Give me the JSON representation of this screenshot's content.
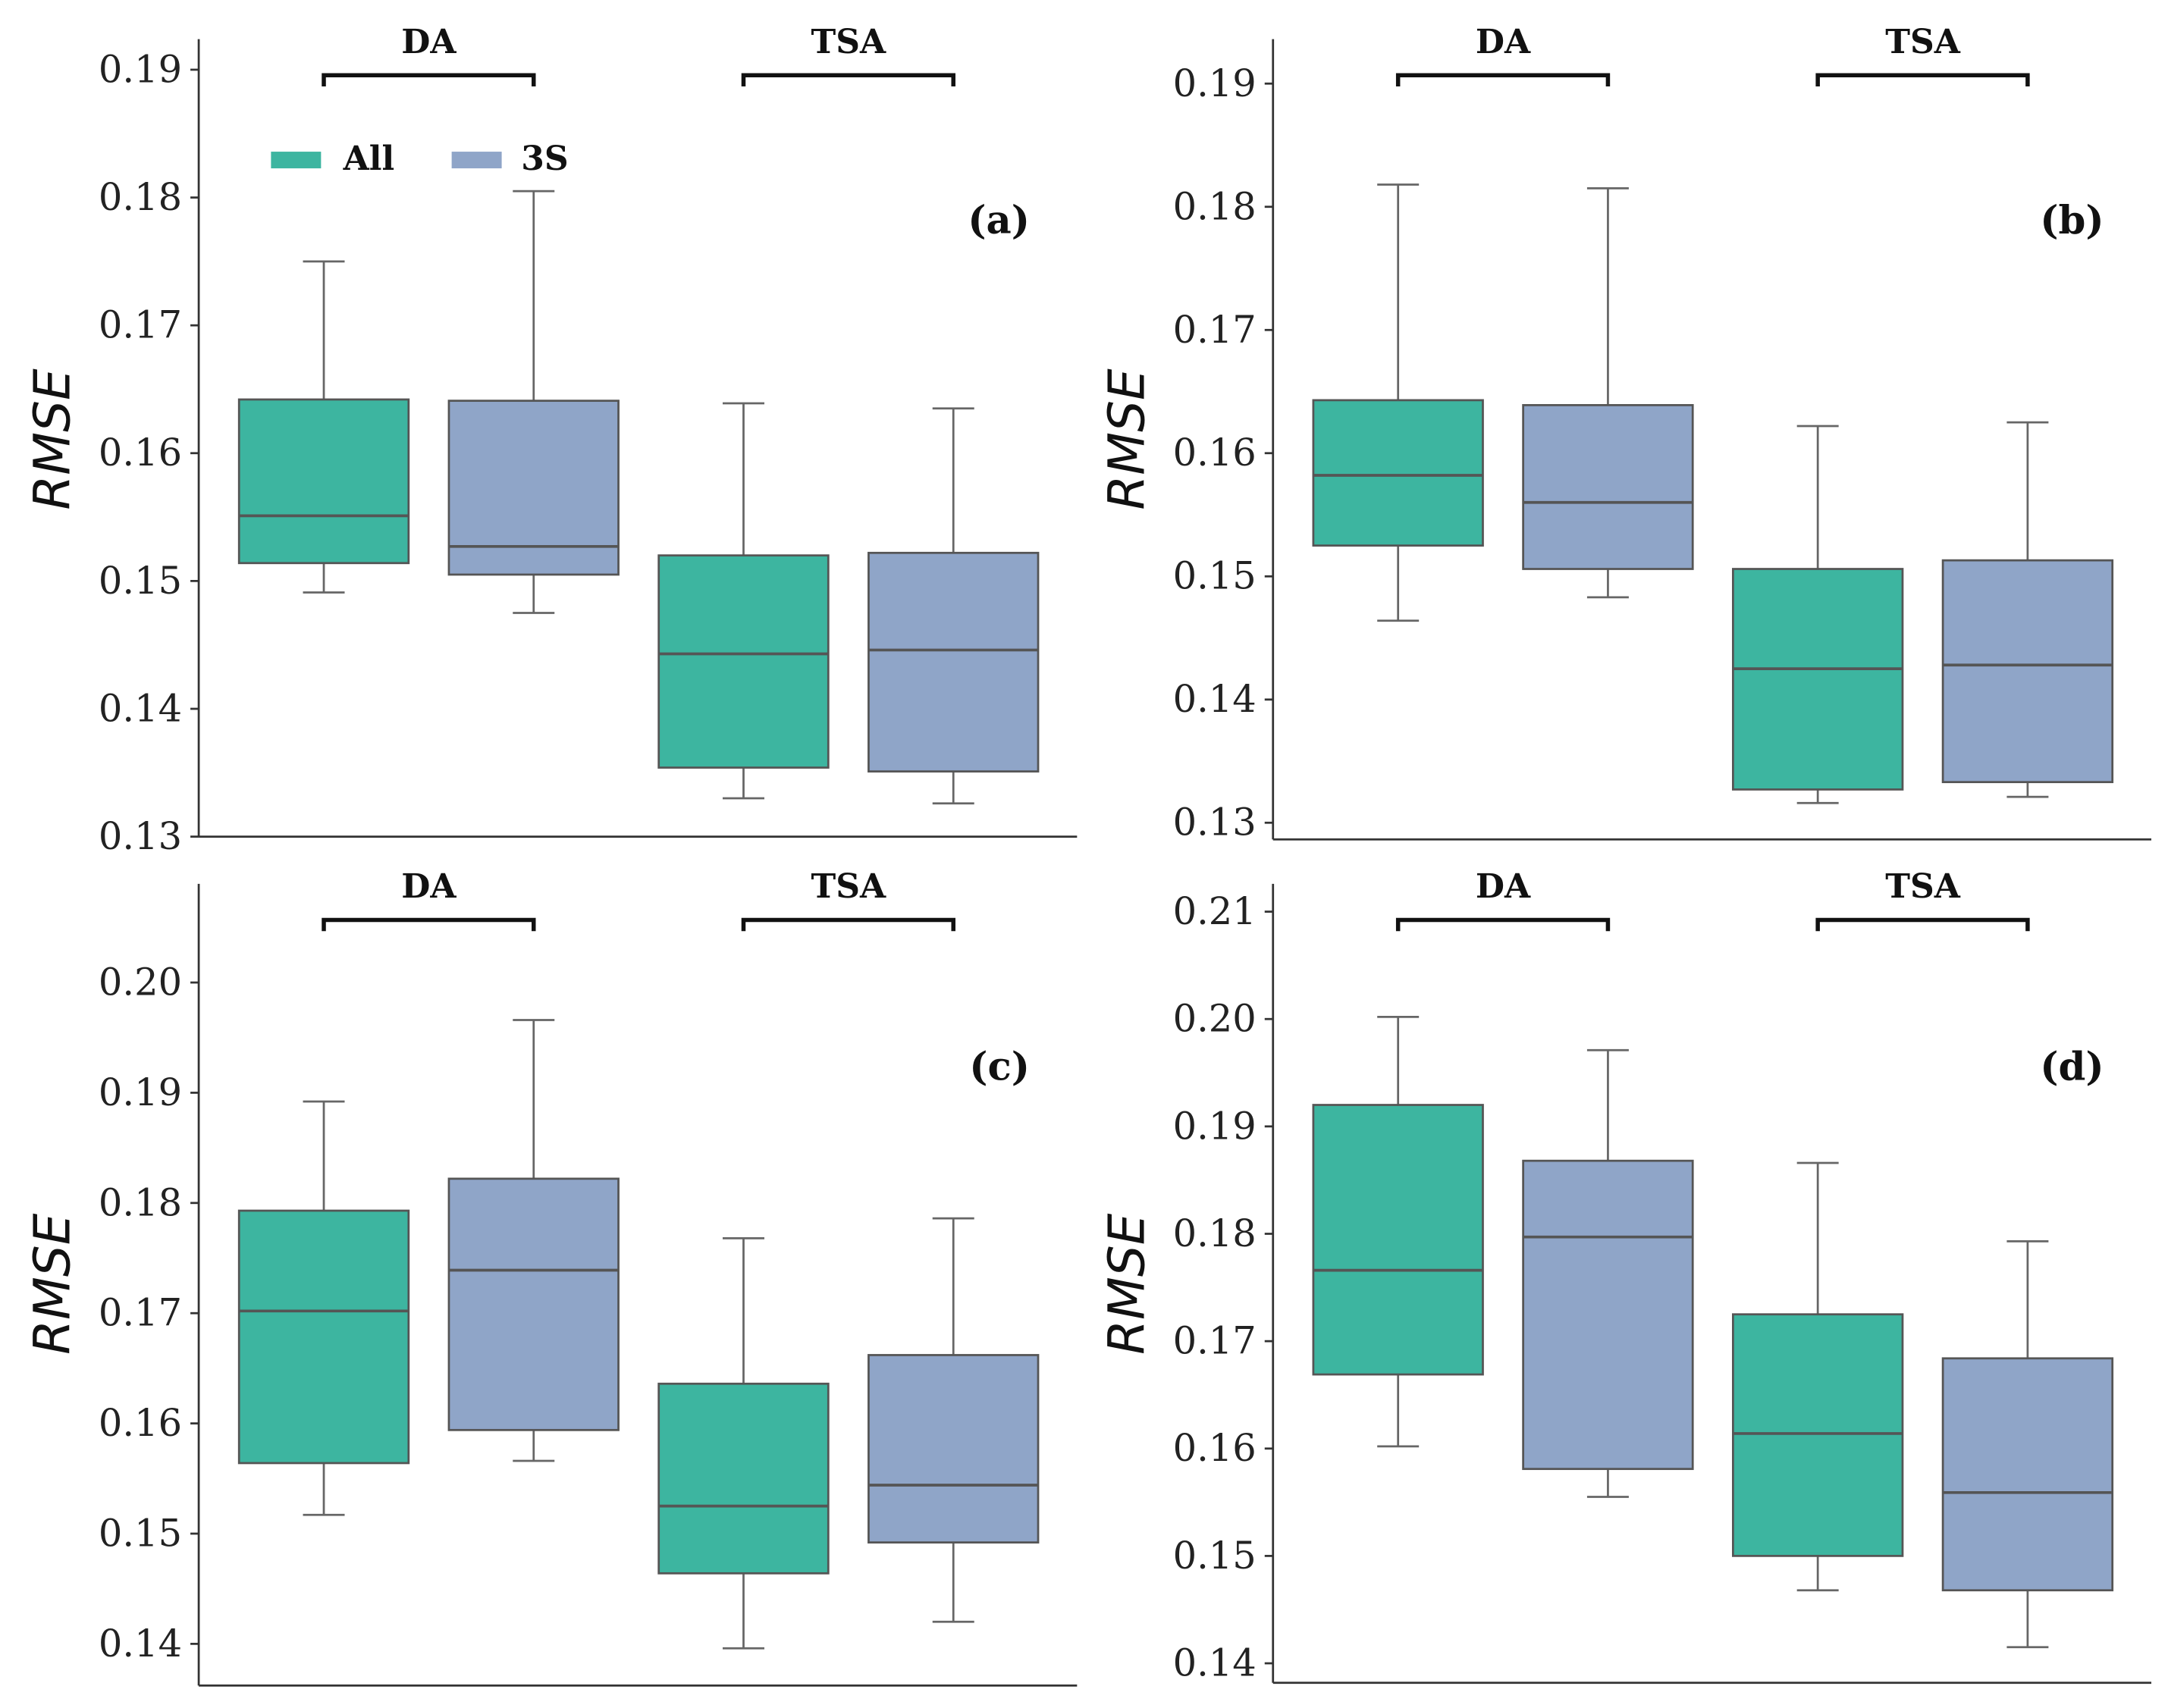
{
  "chart_data": [
    {
      "type": "box",
      "panel_label": "(a)",
      "ylabel": "RMSE",
      "ylim": [
        0.13,
        0.19
      ],
      "yticks": [
        "0.13",
        "0.14",
        "0.15",
        "0.16",
        "0.17",
        "0.18",
        "0.19"
      ],
      "groups": [
        "DA",
        "TSA"
      ],
      "legend": [
        {
          "name": "All",
          "color": "#3db5a0"
        },
        {
          "name": "3S",
          "color": "#8fa5c8"
        }
      ],
      "boxes": [
        {
          "group": "DA",
          "series": "All",
          "min": 0.1491,
          "q1": 0.1514,
          "median": 0.1551,
          "q3": 0.1642,
          "max": 0.175
        },
        {
          "group": "DA",
          "series": "3S",
          "min": 0.1475,
          "q1": 0.1505,
          "median": 0.1527,
          "q3": 0.1641,
          "max": 0.1805
        },
        {
          "group": "TSA",
          "series": "All",
          "min": 0.133,
          "q1": 0.1354,
          "median": 0.1443,
          "q3": 0.152,
          "max": 0.1639
        },
        {
          "group": "TSA",
          "series": "3S",
          "min": 0.1326,
          "q1": 0.1351,
          "median": 0.1446,
          "q3": 0.1522,
          "max": 0.1635
        }
      ]
    },
    {
      "type": "box",
      "panel_label": "(b)",
      "ylabel": "RMSE",
      "ylim": [
        0.13,
        0.19
      ],
      "yticks": [
        "0.13",
        "0.14",
        "0.15",
        "0.16",
        "0.17",
        "0.18",
        "0.19"
      ],
      "groups": [
        "DA",
        "TSA"
      ],
      "boxes": [
        {
          "group": "DA",
          "series": "All",
          "min": 0.1464,
          "q1": 0.1525,
          "median": 0.1582,
          "q3": 0.1643,
          "max": 0.1818
        },
        {
          "group": "DA",
          "series": "3S",
          "min": 0.1483,
          "q1": 0.1506,
          "median": 0.156,
          "q3": 0.1639,
          "max": 0.1815
        },
        {
          "group": "TSA",
          "series": "All",
          "min": 0.1316,
          "q1": 0.1327,
          "median": 0.1425,
          "q3": 0.1506,
          "max": 0.1622
        },
        {
          "group": "TSA",
          "series": "3S",
          "min": 0.1321,
          "q1": 0.1333,
          "median": 0.1428,
          "q3": 0.1513,
          "max": 0.1625
        }
      ]
    },
    {
      "type": "box",
      "panel_label": "(c)",
      "ylabel": "RMSE",
      "ylim": [
        0.14,
        0.2
      ],
      "yticks": [
        "0.14",
        "0.15",
        "0.16",
        "0.17",
        "0.18",
        "0.19",
        "0.20"
      ],
      "groups": [
        "DA",
        "TSA"
      ],
      "boxes": [
        {
          "group": "DA",
          "series": "All",
          "min": 0.1517,
          "q1": 0.1564,
          "median": 0.1702,
          "q3": 0.1793,
          "max": 0.1892
        },
        {
          "group": "DA",
          "series": "3S",
          "min": 0.1566,
          "q1": 0.1594,
          "median": 0.1739,
          "q3": 0.1822,
          "max": 0.1966
        },
        {
          "group": "TSA",
          "series": "All",
          "min": 0.1396,
          "q1": 0.1464,
          "median": 0.1525,
          "q3": 0.1636,
          "max": 0.1768
        },
        {
          "group": "TSA",
          "series": "3S",
          "min": 0.142,
          "q1": 0.1492,
          "median": 0.1544,
          "q3": 0.1662,
          "max": 0.1786
        }
      ]
    },
    {
      "type": "box",
      "panel_label": "(d)",
      "ylabel": "RMSE",
      "ylim": [
        0.14,
        0.21
      ],
      "yticks": [
        "0.14",
        "0.15",
        "0.16",
        "0.17",
        "0.18",
        "0.19",
        "0.20",
        "0.21"
      ],
      "groups": [
        "DA",
        "TSA"
      ],
      "boxes": [
        {
          "group": "DA",
          "series": "All",
          "min": 0.1602,
          "q1": 0.1669,
          "median": 0.1766,
          "q3": 0.192,
          "max": 0.2002
        },
        {
          "group": "DA",
          "series": "3S",
          "min": 0.1555,
          "q1": 0.1581,
          "median": 0.1797,
          "q3": 0.1868,
          "max": 0.1971
        },
        {
          "group": "TSA",
          "series": "All",
          "min": 0.1468,
          "q1": 0.15,
          "median": 0.1614,
          "q3": 0.1725,
          "max": 0.1866
        },
        {
          "group": "TSA",
          "series": "3S",
          "min": 0.1415,
          "q1": 0.1468,
          "median": 0.1559,
          "q3": 0.1684,
          "max": 0.1793
        }
      ]
    }
  ],
  "colors": {
    "All": "#3db5a0",
    "3S": "#8fa5c8",
    "outline": "#555555"
  }
}
